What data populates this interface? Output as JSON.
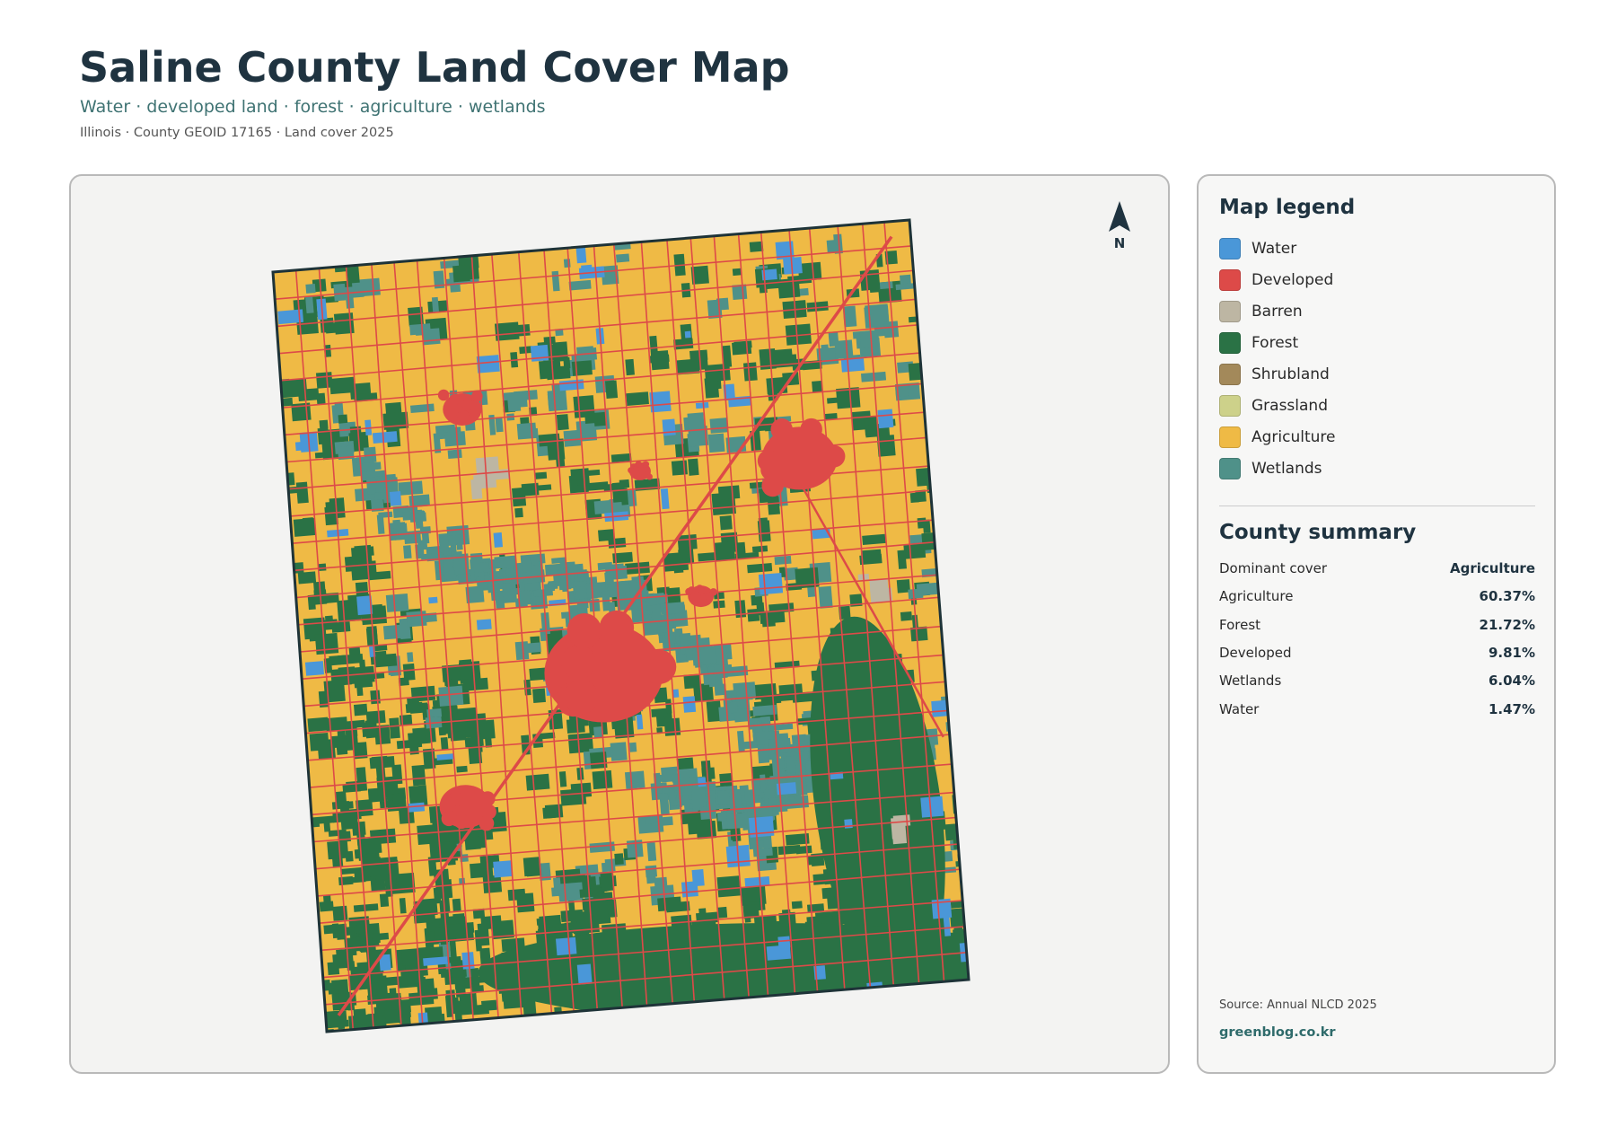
{
  "header": {
    "title": "Saline County Land Cover Map",
    "subtitle": "Water · developed land · forest · agriculture · wetlands",
    "meta": "Illinois · County GEOID 17165 · Land cover 2025"
  },
  "map": {
    "north_label": "N"
  },
  "legend": {
    "title": "Map legend",
    "items": [
      {
        "label": "Water",
        "color": "#4a97d8"
      },
      {
        "label": "Developed",
        "color": "#dd4a48"
      },
      {
        "label": "Barren",
        "color": "#bdb6a3"
      },
      {
        "label": "Forest",
        "color": "#2a7245"
      },
      {
        "label": "Shrubland",
        "color": "#a3895a"
      },
      {
        "label": "Grassland",
        "color": "#cdd18a"
      },
      {
        "label": "Agriculture",
        "color": "#efba45"
      },
      {
        "label": "Wetlands",
        "color": "#4f9189"
      }
    ]
  },
  "summary": {
    "title": "County summary",
    "rows": [
      [
        "Dominant cover",
        "Agriculture"
      ],
      [
        "Agriculture",
        "60.37%"
      ],
      [
        "Forest",
        "21.72%"
      ],
      [
        "Developed",
        "9.81%"
      ],
      [
        "Wetlands",
        "6.04%"
      ],
      [
        "Water",
        "1.47%"
      ]
    ]
  },
  "footer": {
    "source": "Source: Annual NLCD 2025",
    "link": "greenblog.co.kr"
  }
}
